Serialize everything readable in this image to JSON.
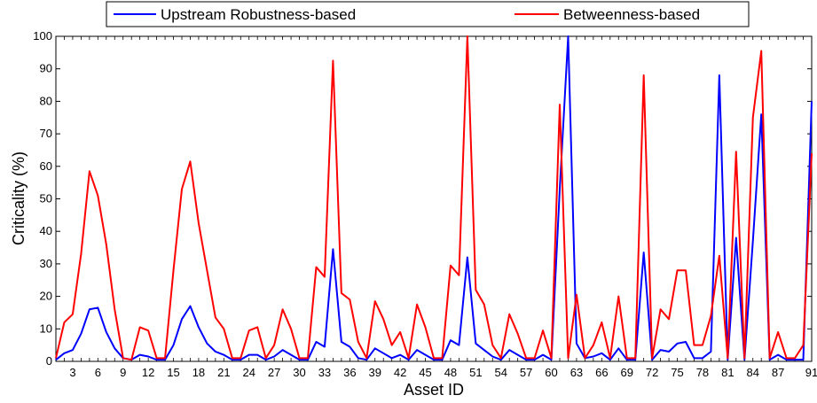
{
  "chart_data": {
    "type": "line",
    "xlabel": "Asset ID",
    "ylabel": "Criticality (%)",
    "xlim": [
      1,
      91
    ],
    "ylim": [
      0,
      100
    ],
    "x_ticks": [
      3,
      6,
      9,
      12,
      15,
      18,
      21,
      24,
      27,
      30,
      33,
      36,
      39,
      42,
      45,
      48,
      51,
      54,
      57,
      60,
      63,
      66,
      69,
      72,
      75,
      78,
      81,
      84,
      87,
      91
    ],
    "y_ticks": [
      0,
      10,
      20,
      30,
      40,
      50,
      60,
      70,
      80,
      90,
      100
    ],
    "legend_position": "top",
    "grid": false,
    "series": [
      {
        "name": "Upstream Robustness-based",
        "color": "#0000ff",
        "values": [
          0.5,
          2.5,
          3.5,
          8.5,
          16,
          16.5,
          9,
          4,
          1,
          0.5,
          2,
          1.5,
          0.5,
          0.5,
          5,
          13,
          17,
          10.5,
          5.5,
          3,
          2,
          0.5,
          0.5,
          2,
          2,
          0.5,
          1.5,
          3.5,
          2,
          0.5,
          0.5,
          6,
          4.5,
          34.5,
          6,
          4.5,
          1,
          0.5,
          4,
          2.5,
          1,
          2,
          0.5,
          3.5,
          2,
          0.5,
          0.5,
          6.5,
          5,
          32,
          5.5,
          3.5,
          1.5,
          0.5,
          3.5,
          2,
          0.5,
          0.5,
          2,
          0.5,
          53,
          100,
          5.5,
          1,
          1.5,
          2.5,
          0.5,
          4,
          0.5,
          0.5,
          33.5,
          0.5,
          3.5,
          3,
          5.5,
          6,
          1,
          1,
          3,
          88,
          0.5,
          38,
          0.5,
          37,
          76,
          0.5,
          2,
          0.5,
          0.5,
          0.5,
          80
        ]
      },
      {
        "name": "Betweenness-based",
        "color": "#ff0000",
        "values": [
          1,
          12,
          14.5,
          33,
          58.5,
          51,
          36,
          16,
          1,
          0.5,
          10.5,
          9.5,
          1,
          1,
          28,
          53,
          61.5,
          42.5,
          28,
          13.5,
          10,
          1,
          1,
          9.5,
          10.5,
          1,
          5,
          16,
          10,
          1,
          1,
          29,
          26,
          92.5,
          21,
          19,
          6,
          1,
          18.5,
          13,
          5,
          9,
          1,
          17.5,
          10.5,
          1,
          1,
          29.5,
          26.5,
          100,
          22,
          17.5,
          5,
          1,
          14.5,
          8.5,
          1,
          1,
          9.5,
          1,
          79,
          1,
          20.5,
          1,
          5,
          12,
          1,
          20,
          1,
          1,
          88,
          1,
          16,
          13,
          28,
          28,
          5,
          5,
          14,
          32.5,
          1,
          64.5,
          1,
          75,
          95.5,
          1,
          9,
          1,
          1,
          5,
          64
        ]
      }
    ]
  }
}
